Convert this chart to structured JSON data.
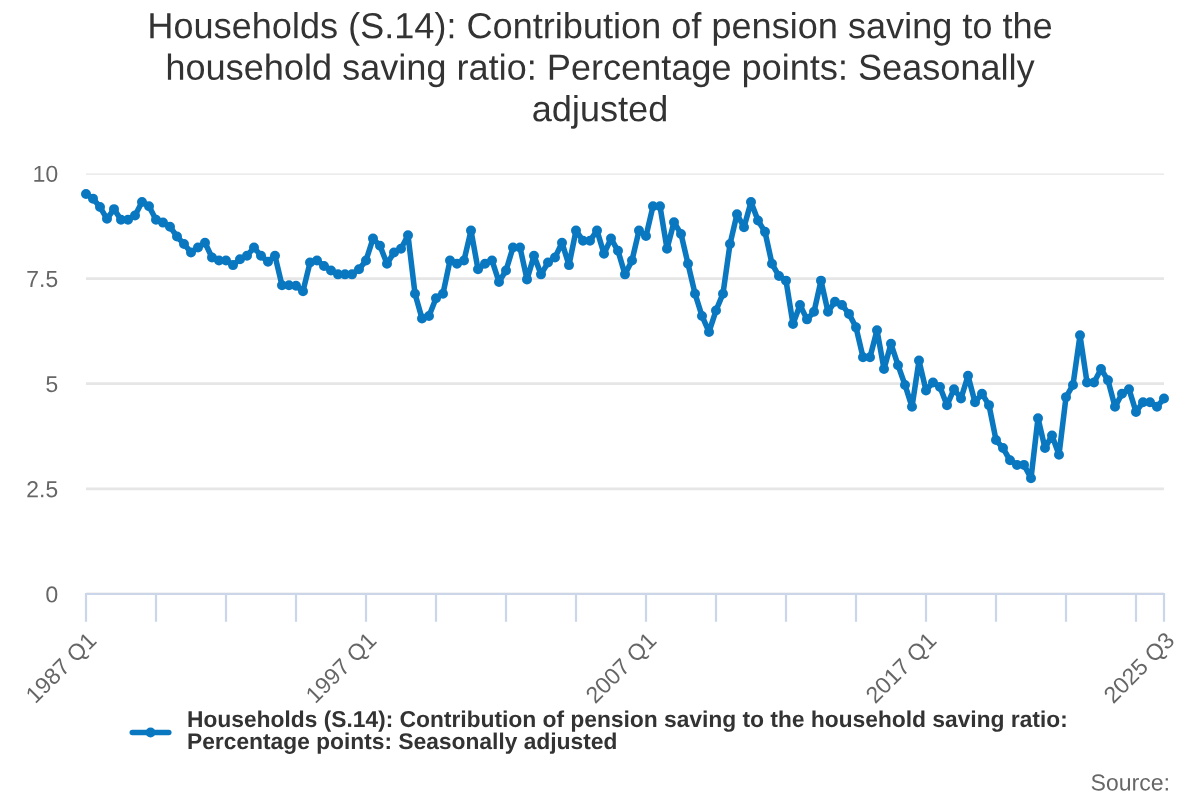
{
  "chart_data": {
    "type": "line",
    "title": "Households (S.14): Contribution of pension saving to the household saving ratio: Percentage points: Seasonally adjusted",
    "categories": [
      "1987 Q1",
      null,
      null,
      null,
      null,
      null,
      null,
      null,
      null,
      null,
      null,
      null,
      null,
      null,
      null,
      null,
      null,
      null,
      null,
      null,
      null,
      null,
      null,
      null,
      null,
      null,
      null,
      null,
      null,
      null,
      null,
      null,
      null,
      null,
      null,
      null,
      null,
      null,
      null,
      null,
      "1997 Q1",
      null,
      null,
      null,
      null,
      null,
      null,
      null,
      null,
      null,
      null,
      null,
      null,
      null,
      null,
      null,
      null,
      null,
      null,
      null,
      null,
      null,
      null,
      null,
      null,
      null,
      null,
      null,
      null,
      null,
      null,
      null,
      null,
      null,
      null,
      null,
      null,
      null,
      null,
      null,
      "2007 Q1",
      null,
      null,
      null,
      null,
      null,
      null,
      null,
      null,
      null,
      null,
      null,
      null,
      null,
      null,
      null,
      null,
      null,
      null,
      null,
      null,
      null,
      null,
      null,
      null,
      null,
      null,
      null,
      null,
      null,
      null,
      null,
      null,
      null,
      null,
      null,
      null,
      null,
      null,
      null,
      "2017 Q1",
      null,
      null,
      null,
      null,
      null,
      null,
      null,
      null,
      null,
      null,
      null,
      null,
      null,
      null,
      null,
      null,
      null,
      null,
      null,
      null,
      null,
      null,
      null,
      null,
      null,
      null,
      null,
      null,
      null,
      null,
      null,
      null,
      null,
      "2025 Q3"
    ],
    "series": [
      {
        "name": "Households (S.14): Contribution of pension saving to the household saving ratio: Percentage points: Seasonally adjusted",
        "color": "#0a78c0",
        "values": [
          9.51,
          9.4,
          9.2,
          8.92,
          9.15,
          8.9,
          8.9,
          9.0,
          9.32,
          9.22,
          8.9,
          8.83,
          8.73,
          8.5,
          8.32,
          8.12,
          8.24,
          8.35,
          8.0,
          7.93,
          7.93,
          7.82,
          7.96,
          8.04,
          8.24,
          8.04,
          7.9,
          8.04,
          7.34,
          7.34,
          7.33,
          7.2,
          7.88,
          7.93,
          7.8,
          7.69,
          7.6,
          7.6,
          7.6,
          7.72,
          7.93,
          8.45,
          8.28,
          7.85,
          8.12,
          8.21,
          8.53,
          7.14,
          6.55,
          6.61,
          7.03,
          7.14,
          7.93,
          7.85,
          7.93,
          8.64,
          7.72,
          7.85,
          7.93,
          7.42,
          7.69,
          8.24,
          8.24,
          7.48,
          8.04,
          7.6,
          7.88,
          8.0,
          8.35,
          7.82,
          8.64,
          8.4,
          8.4,
          8.64,
          8.09,
          8.45,
          8.16,
          7.6,
          7.93,
          8.64,
          8.51,
          9.22,
          9.22,
          8.21,
          8.84,
          8.56,
          7.85,
          7.14,
          6.61,
          6.23,
          6.74,
          7.14,
          8.32,
          9.03,
          8.72,
          9.32,
          8.88,
          8.61,
          7.85,
          7.56,
          7.45,
          6.42,
          6.87,
          6.53,
          6.71,
          7.45,
          6.71,
          6.95,
          6.87,
          6.66,
          6.34,
          5.63,
          5.63,
          6.27,
          5.35,
          5.95,
          5.44,
          4.97,
          4.45,
          5.55,
          4.84,
          5.03,
          4.92,
          4.49,
          4.87,
          4.65,
          5.19,
          4.56,
          4.76,
          4.49,
          3.66,
          3.47,
          3.18,
          3.07,
          3.07,
          2.75,
          4.18,
          3.47,
          3.77,
          3.31,
          4.68,
          4.97,
          6.15,
          5.03,
          5.03,
          5.35,
          5.08,
          4.45,
          4.76,
          4.87,
          4.33,
          4.56,
          4.56,
          4.45,
          4.65
        ]
      }
    ],
    "ylim": [
      0,
      10
    ],
    "yticks": [
      0,
      2.5,
      5,
      7.5,
      10
    ],
    "grid": "y",
    "legend": "bottom",
    "marker": "circle",
    "line_style": "solid",
    "annotations": [
      "Source:"
    ]
  }
}
